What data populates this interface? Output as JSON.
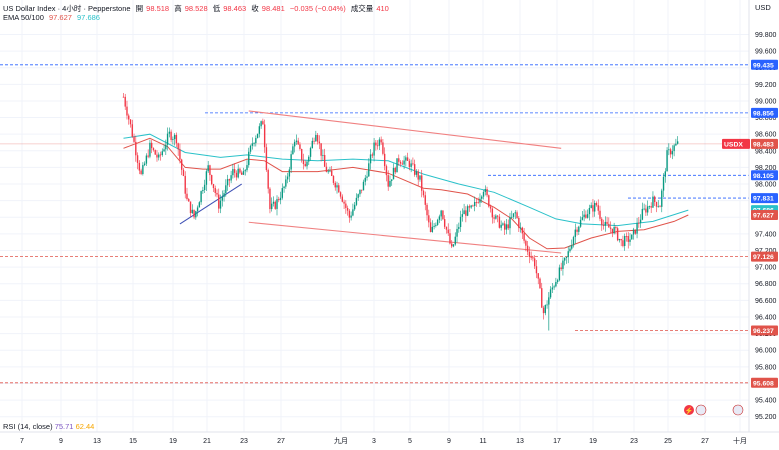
{
  "header": {
    "symbol_line": "US Dollar Index · 4小时 · Pepperstone",
    "open_label": "開",
    "open_value": "98.518",
    "high_label": "高",
    "high_value": "98.528",
    "low_label": "低",
    "low_value": "98.463",
    "close_label": "收",
    "close_value": "98.481",
    "change": "−0.035 (−0.04%)",
    "volume_label": "成交量",
    "volume_value": "410",
    "ema_label": "EMA 50/100",
    "ema50_value": "97.627",
    "ema100_value": "97.686"
  },
  "rsi": {
    "label": "RSI (14, close)",
    "value1": "75.71",
    "value2": "62.44"
  },
  "currency": "USD",
  "colors": {
    "up": "#089981",
    "down": "#f23645",
    "ema50": "#e0534a",
    "ema100": "#2ac1c9",
    "level_red": "#e0534a",
    "level_blue": "#2962ff",
    "trend": "#f08080",
    "trend_blue": "#3f51b5"
  },
  "chart_data": {
    "type": "candlestick",
    "y_ticks": [
      "99.800",
      "99.600",
      "99.400",
      "99.200",
      "99.000",
      "98.800",
      "98.600",
      "98.400",
      "98.200",
      "98.000",
      "97.800",
      "97.600",
      "97.400",
      "97.200",
      "97.000",
      "96.800",
      "96.600",
      "96.400",
      "96.200",
      "96.000",
      "95.800",
      "95.600",
      "95.400",
      "95.200"
    ],
    "ylim": [
      95.1,
      99.95
    ],
    "x_ticks": [
      "7",
      "9",
      "13",
      "15",
      "19",
      "21",
      "23",
      "27",
      "九月",
      "3",
      "5",
      "9",
      "11",
      "13",
      "17",
      "19",
      "23",
      "25",
      "27",
      "十月"
    ],
    "levels": [
      {
        "label": "99.435",
        "value": 99.435,
        "color": "blue"
      },
      {
        "label": "98.856",
        "value": 98.856,
        "color": "blue"
      },
      {
        "label": "98.483",
        "value": 98.483,
        "color": "red",
        "tag": "USDX"
      },
      {
        "label": "98.105",
        "value": 98.105,
        "color": "blue"
      },
      {
        "label": "97.831",
        "value": 97.831,
        "color": "blue"
      },
      {
        "label": "97.686",
        "value": 97.686,
        "color": "cyan"
      },
      {
        "label": "97.627",
        "value": 97.627,
        "color": "ema"
      },
      {
        "label": "97.126",
        "value": 97.126,
        "color": "red"
      },
      {
        "label": "96.237",
        "value": 96.237,
        "color": "red"
      },
      {
        "label": "95.608",
        "value": 95.608,
        "color": "red"
      }
    ],
    "trendlines": [
      {
        "name": "upper channel",
        "x": [
          1,
          178
        ],
        "y": [
          98.88,
          98.43
        ]
      },
      {
        "name": "lower channel",
        "x": [
          1,
          178
        ],
        "y": [
          97.54,
          97.17
        ]
      },
      {
        "name": "rising support",
        "x": [
          -38,
          -3
        ],
        "y": [
          97.52,
          98.0
        ]
      }
    ],
    "ema50": [
      [
        -70,
        98.43
      ],
      [
        -55,
        98.55
      ],
      [
        -45,
        98.45
      ],
      [
        -35,
        98.2
      ],
      [
        -25,
        98.18
      ],
      [
        -15,
        98.18
      ],
      [
        0,
        98.3
      ],
      [
        10,
        98.28
      ],
      [
        20,
        98.15
      ],
      [
        40,
        98.15
      ],
      [
        60,
        98.2
      ],
      [
        80,
        98.13
      ],
      [
        100,
        97.95
      ],
      [
        110,
        97.93
      ],
      [
        125,
        97.88
      ],
      [
        140,
        97.72
      ],
      [
        150,
        97.58
      ],
      [
        160,
        97.35
      ],
      [
        170,
        97.22
      ],
      [
        180,
        97.23
      ],
      [
        195,
        97.35
      ],
      [
        210,
        97.43
      ],
      [
        225,
        97.45
      ],
      [
        242,
        97.55
      ],
      [
        250,
        97.627
      ]
    ],
    "ema100": [
      [
        -70,
        98.55
      ],
      [
        -55,
        98.6
      ],
      [
        -35,
        98.38
      ],
      [
        -15,
        98.32
      ],
      [
        0,
        98.35
      ],
      [
        20,
        98.3
      ],
      [
        40,
        98.28
      ],
      [
        60,
        98.3
      ],
      [
        80,
        98.28
      ],
      [
        100,
        98.12
      ],
      [
        120,
        98.0
      ],
      [
        140,
        97.9
      ],
      [
        160,
        97.72
      ],
      [
        175,
        97.58
      ],
      [
        190,
        97.52
      ],
      [
        210,
        97.5
      ],
      [
        230,
        97.55
      ],
      [
        250,
        97.686
      ]
    ],
    "candles_range": {
      "first_x": -70,
      "last_x": 250,
      "last_close": 98.481
    }
  }
}
